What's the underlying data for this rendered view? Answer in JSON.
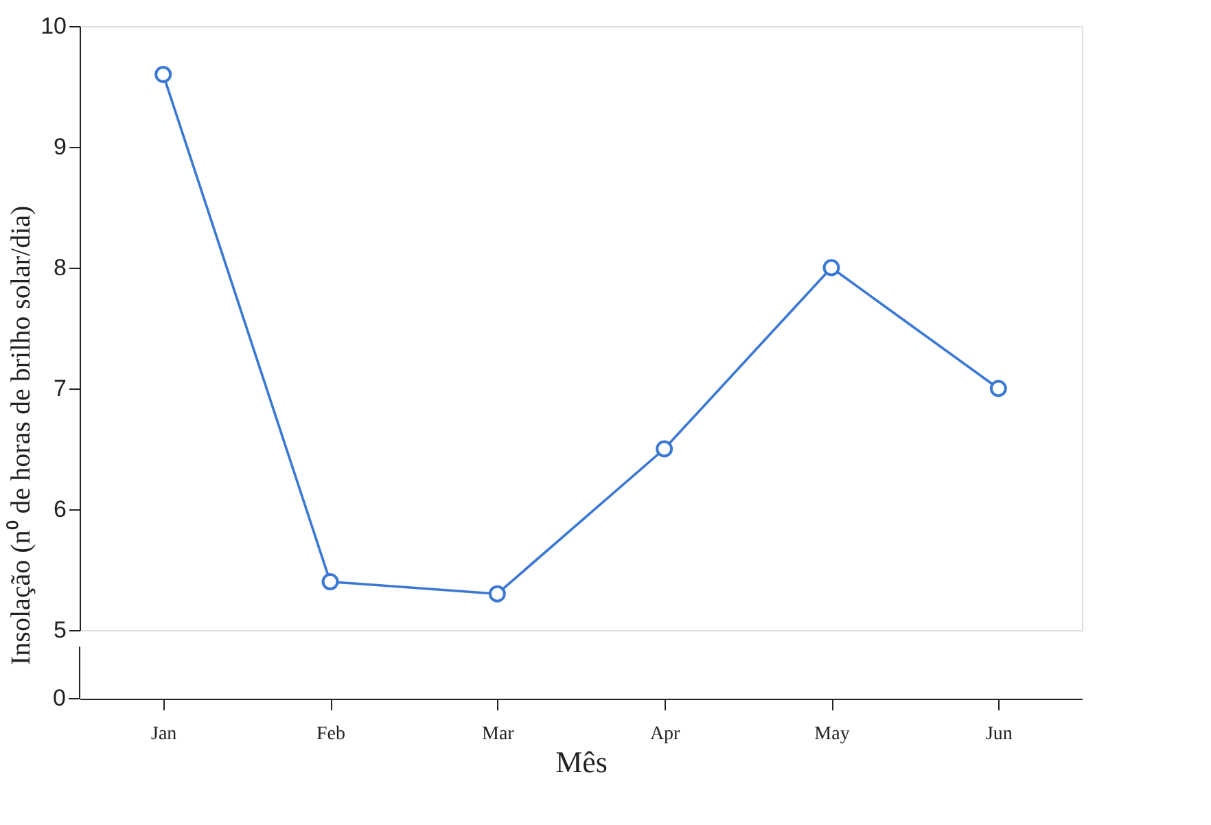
{
  "chart_data": {
    "type": "line",
    "xlabel": "Mês",
    "ylabel": "Insolação (n⁰ de horas de brilho solar/dia)",
    "categories": [
      "Jan",
      "Feb",
      "Mar",
      "Apr",
      "May",
      "Jun"
    ],
    "series": [
      {
        "color": "#3a78d4",
        "values": [
          9.6,
          5.4,
          5.3,
          6.5,
          8.0,
          7.0
        ]
      }
    ],
    "ylim": [
      5,
      10
    ],
    "yticks": [
      5,
      6,
      7,
      8,
      9,
      10
    ],
    "marker": "circle",
    "line_style": "solid",
    "annotations": [
      "0"
    ]
  }
}
